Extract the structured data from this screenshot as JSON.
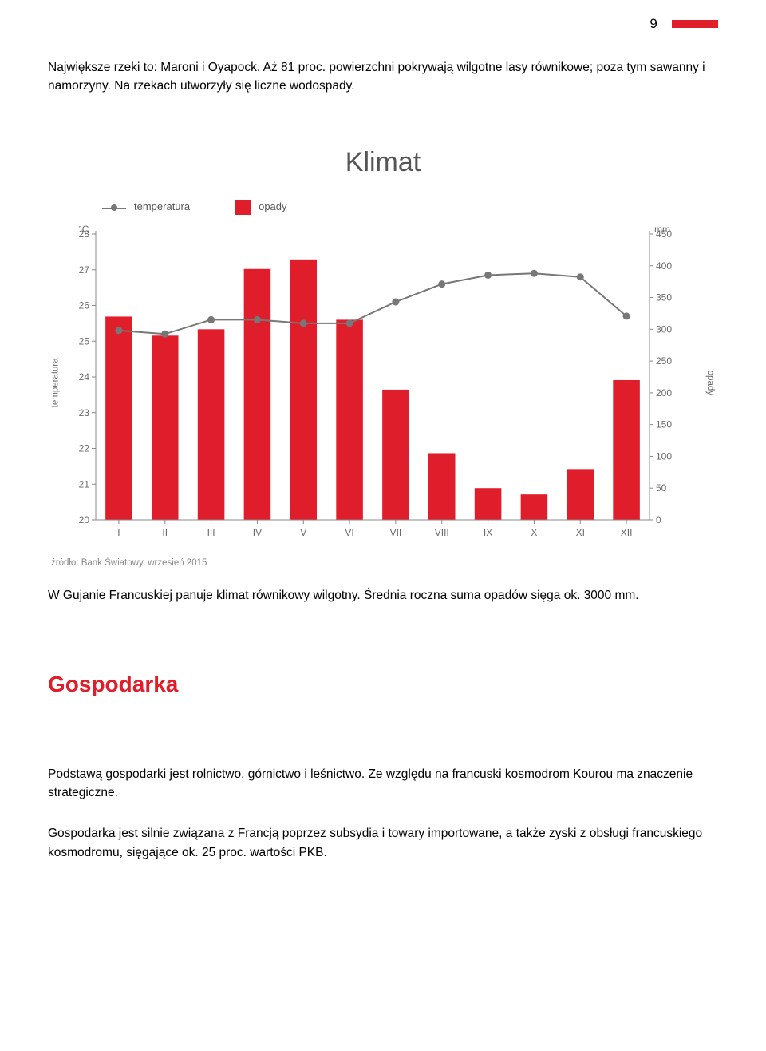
{
  "header": {
    "page_number": "9"
  },
  "paragraphs": {
    "p1": "Największe rzeki to: Maroni i Oyapock. Aż 81 proc. powierzchni pokrywają wilgotne lasy równikowe; poza tym sawanny i namorzyny. Na rzekach utworzyły się liczne wodospady.",
    "p2": "W Gujanie Francuskiej panuje klimat równikowy wilgotny. Średnia roczna suma opadów sięga ok. 3000 mm.",
    "p3": "Podstawą gospodarki jest rolnictwo, górnictwo i leśnictwo. Ze względu na francuski kosmodrom Kourou ma znaczenie strategiczne.",
    "p4": "Gospodarka jest silnie związana z Francją poprzez subsydia i towary importowane, a także zyski z obsługi francuskiego kosmodromu, sięgające ok. 25 proc. wartości PKB."
  },
  "section_heading": "Gospodarka",
  "chart": {
    "type": "bar+line",
    "title": "Klimat",
    "legend_temp": "temperatura",
    "legend_precip": "opady",
    "left_axis_label": "temperatura",
    "right_axis_label": "opady",
    "left_unit": "°C",
    "right_unit": "mm",
    "categories": [
      "I",
      "II",
      "III",
      "IV",
      "V",
      "VI",
      "VII",
      "VIII",
      "IX",
      "X",
      "XI",
      "XII"
    ],
    "bar_values_mm": [
      320,
      290,
      300,
      395,
      410,
      315,
      205,
      105,
      50,
      40,
      80,
      220
    ],
    "line_values_c": [
      25.3,
      25.2,
      25.6,
      25.6,
      25.5,
      25.5,
      26.1,
      26.6,
      26.85,
      26.9,
      26.8,
      25.7
    ],
    "left_y": {
      "min": 20,
      "max": 28,
      "ticks": [
        20,
        21,
        22,
        23,
        24,
        25,
        26,
        27,
        28
      ]
    },
    "right_y": {
      "min": 0,
      "max": 450,
      "ticks": [
        0,
        50,
        100,
        150,
        200,
        250,
        300,
        350,
        400,
        450
      ]
    },
    "colors": {
      "bar": "#e01e2b",
      "line": "#777777",
      "marker": "#777777",
      "axis": "#888888",
      "tick_text": "#6a6a6a",
      "title": "#555555",
      "background": "#ffffff"
    },
    "bar_width_ratio": 0.58,
    "marker_radius": 4.5,
    "line_width": 2,
    "axis_line_width": 1,
    "font_size_ticks": 12,
    "font_size_units": 12
  },
  "source": "źródło: Bank Światowy, wrzesień 2015"
}
